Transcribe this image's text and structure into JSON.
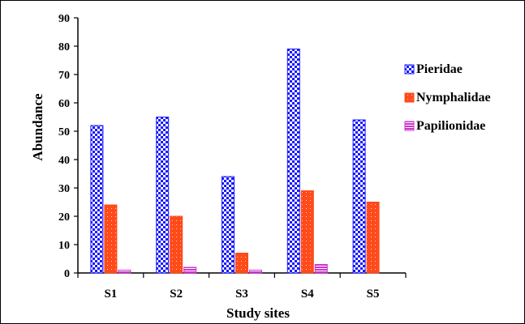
{
  "chart_data": {
    "type": "bar",
    "xlabel": "Study sites",
    "ylabel": "Abundance",
    "ylim": [
      0,
      90
    ],
    "yticks": [
      0,
      10,
      20,
      30,
      40,
      50,
      60,
      70,
      80,
      90
    ],
    "categories": [
      "S1",
      "S2",
      "S3",
      "S4",
      "S5"
    ],
    "series": [
      {
        "name": "Pieridae",
        "values": [
          52,
          55,
          34,
          79,
          54
        ],
        "color": "#1a1aff",
        "pattern": "checkerboard"
      },
      {
        "name": "Nymphalidae",
        "values": [
          24,
          20,
          7,
          29,
          25
        ],
        "color": "#ff4a1a",
        "pattern": "dotted"
      },
      {
        "name": "Papilionidae",
        "values": [
          1,
          2,
          1,
          3,
          0
        ],
        "color": "#cc33cc",
        "pattern": "horizontal-lines"
      }
    ],
    "grid": false,
    "legend_position": "right"
  }
}
